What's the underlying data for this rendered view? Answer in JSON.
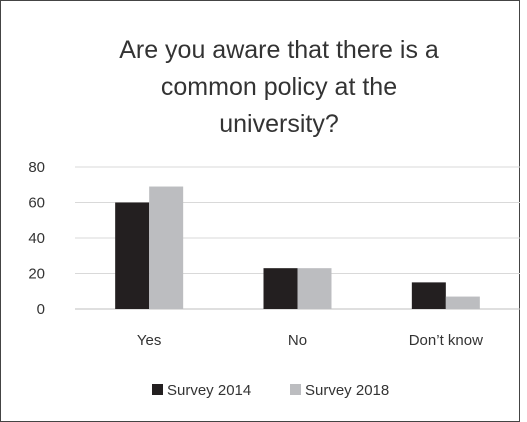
{
  "chart_data": {
    "type": "bar",
    "title_lines": [
      "Are you aware that there is a",
      "common policy at the",
      "university?"
    ],
    "categories": [
      "Yes",
      "No",
      "Don’t know"
    ],
    "series": [
      {
        "name": "Survey 2014",
        "values": [
          60,
          23,
          15
        ],
        "color": "#231f20"
      },
      {
        "name": "Survey 2018",
        "values": [
          69,
          23,
          7
        ],
        "color": "#bcbdc0"
      }
    ],
    "ylim": [
      0,
      80
    ],
    "yticks": [
      0,
      20,
      40,
      60,
      80
    ],
    "grid": true,
    "legend_position": "bottom"
  }
}
